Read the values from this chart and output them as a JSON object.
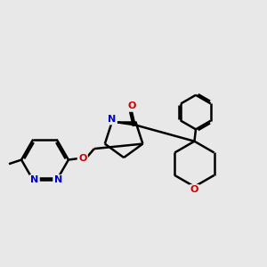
{
  "background_color": "#e8e8e8",
  "bond_color": "#000000",
  "atom_colors": {
    "N": "#0000cc",
    "O": "#cc0000",
    "C": "#000000"
  },
  "line_width": 1.8,
  "figsize": [
    3.0,
    3.0
  ],
  "dpi": 100
}
